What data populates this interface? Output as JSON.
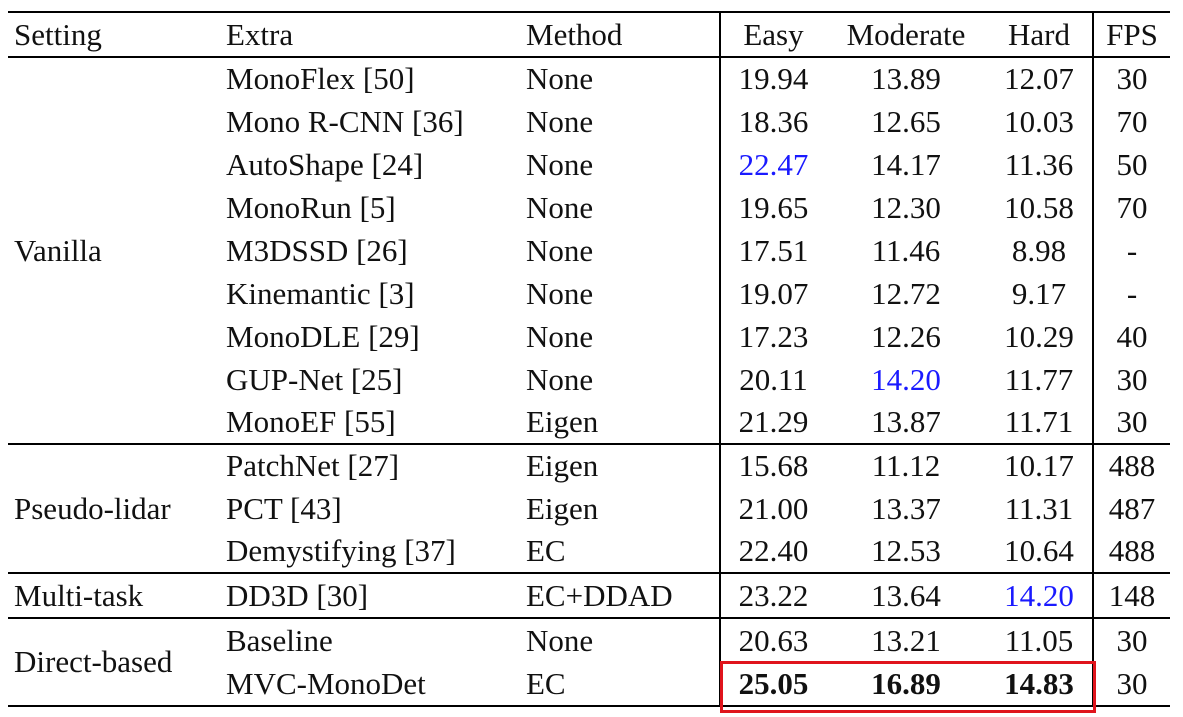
{
  "table": {
    "header": [
      "Setting",
      "Extra",
      "Method",
      "Easy",
      "Moderate",
      "Hard",
      "FPS"
    ],
    "groups": [
      {
        "setting": "Vanilla",
        "rows": [
          [
            "MonoFlex [50]",
            "None",
            "19.94",
            "13.89",
            "12.07",
            "30"
          ],
          [
            "Mono R-CNN [36]",
            "None",
            "18.36",
            "12.65",
            "10.03",
            "70"
          ],
          [
            "AutoShape [24]",
            "None",
            "22.47",
            "14.17",
            "11.36",
            "50"
          ],
          [
            "MonoRun [5]",
            "None",
            "19.65",
            "12.30",
            "10.58",
            "70"
          ],
          [
            "M3DSSD [26]",
            "None",
            "17.51",
            "11.46",
            "8.98",
            "-"
          ],
          [
            "Kinemantic [3]",
            "None",
            "19.07",
            "12.72",
            "9.17",
            "-"
          ],
          [
            "MonoDLE [29]",
            "None",
            "17.23",
            "12.26",
            "10.29",
            "40"
          ],
          [
            "GUP-Net [25]",
            "None",
            "20.11",
            "14.20",
            "11.77",
            "30"
          ],
          [
            "MonoEF [55]",
            "Eigen",
            "21.29",
            "13.87",
            "11.71",
            "30"
          ]
        ]
      },
      {
        "setting": "Pseudo-lidar",
        "rows": [
          [
            "PatchNet [27]",
            "Eigen",
            "15.68",
            "11.12",
            "10.17",
            "488"
          ],
          [
            "PCT [43]",
            "Eigen",
            "21.00",
            "13.37",
            "11.31",
            "487"
          ],
          [
            "Demystifying [37]",
            "EC",
            "22.40",
            "12.53",
            "10.64",
            "488"
          ]
        ]
      },
      {
        "setting": "Multi-task",
        "rows": [
          [
            "DD3D [30]",
            "EC+DDAD",
            "23.22",
            "13.64",
            "14.20",
            "148"
          ]
        ]
      },
      {
        "setting": "Direct-based",
        "rows": [
          [
            "Baseline",
            "None",
            "20.63",
            "13.21",
            "11.05",
            "30"
          ],
          [
            "MVC-MonoDet",
            "EC",
            "25.05",
            "16.89",
            "14.83",
            "30"
          ]
        ]
      }
    ]
  }
}
